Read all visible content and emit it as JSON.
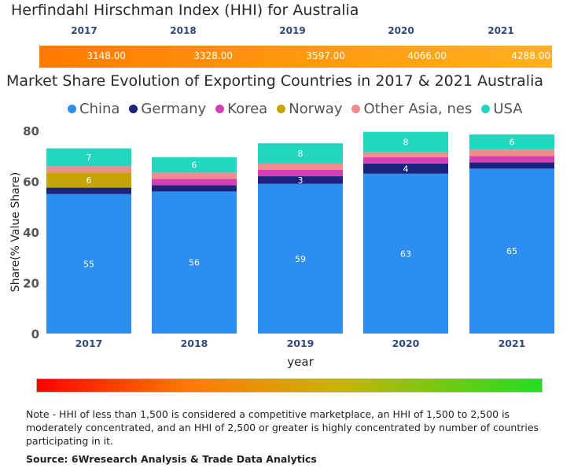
{
  "hhi": {
    "title": "Herfindahl Hirschman Index (HHI) for Australia",
    "years": [
      "2017",
      "2018",
      "2019",
      "2020",
      "2021"
    ],
    "values": [
      "3148.00",
      "3328.00",
      "3597.00",
      "4066.00",
      "4288.00"
    ]
  },
  "chart_data": {
    "type": "bar",
    "stacked": true,
    "title": "Market Share Evolution of Exporting Countries in 2017 & 2021 Australia",
    "xlabel": "year",
    "ylabel": "Share(% Value Share)",
    "ylim": [
      0,
      80
    ],
    "yticks": [
      "0",
      "20",
      "40",
      "60",
      "80"
    ],
    "categories": [
      "2017",
      "2018",
      "2019",
      "2020",
      "2021"
    ],
    "series": [
      {
        "name": "China",
        "color": "#2b8ef0",
        "values": [
          55,
          56,
          59,
          63,
          65
        ],
        "labels": [
          "55",
          "56",
          "59",
          "63",
          "65"
        ]
      },
      {
        "name": "Germany",
        "color": "#1a237e",
        "values": [
          2.5,
          2.5,
          3,
          4,
          2.5
        ],
        "labels": [
          "",
          "",
          "3",
          "4",
          ""
        ]
      },
      {
        "name": "Korea",
        "color": "#d63fb4",
        "values": [
          0,
          2.5,
          2.5,
          2.5,
          2.5
        ],
        "labels": [
          "",
          "",
          "",
          "",
          ""
        ]
      },
      {
        "name": "Norway",
        "color": "#c4a400",
        "values": [
          6,
          0,
          0,
          0,
          0
        ],
        "labels": [
          "6",
          "",
          "",
          "",
          ""
        ]
      },
      {
        "name": "Other Asia, nes",
        "color": "#f08c8c",
        "values": [
          2.5,
          2.5,
          2.5,
          2,
          2.5
        ],
        "labels": [
          "",
          "",
          "",
          "",
          ""
        ]
      },
      {
        "name": "USA",
        "color": "#22d6c0",
        "values": [
          7,
          6,
          8,
          8,
          6
        ],
        "labels": [
          "7",
          "6",
          "8",
          "8",
          "6"
        ]
      }
    ]
  },
  "note": "Note - HHI of less than 1,500 is considered a competitive marketplace, an HHI of 1,500 to 2,500 is moderately concentrated, and an HHI of 2,500 or greater is highly concentrated by number of countries participating in it.",
  "source": "Source: 6Wresearch Analysis & Trade Data Analytics"
}
